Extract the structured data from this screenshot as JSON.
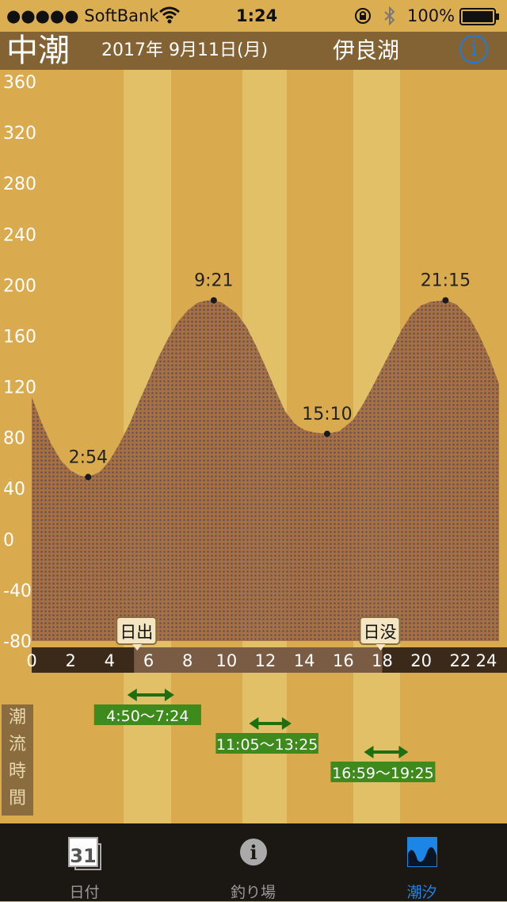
{
  "status_bar": {
    "carrier": "●●●●● SoftBank",
    "time": "1:24",
    "battery": "100%"
  },
  "header": {
    "tide_type": "中潮",
    "date": "2017年 9月11日(月)",
    "place": "伊良湖",
    "info_icon": "i"
  },
  "chart_data": {
    "type": "area",
    "x_ticks": [
      "0",
      "2",
      "4",
      "6",
      "8",
      "10",
      "12",
      "14",
      "16",
      "18",
      "20",
      "22",
      "24"
    ],
    "y_ticks": [
      "360",
      "320",
      "280",
      "240",
      "200",
      "160",
      "120",
      "80",
      "40",
      "0",
      "-40",
      "-80"
    ],
    "xlim": [
      0,
      24
    ],
    "ylim": [
      -80,
      360
    ],
    "series": [
      {
        "x": [
          0,
          0.5,
          1,
          1.5,
          2,
          2.5,
          2.9,
          3.5,
          4,
          4.5,
          5,
          5.5,
          6,
          6.5,
          7,
          7.5,
          8,
          8.5,
          9,
          9.35,
          9.8,
          10.5,
          11,
          11.5,
          12,
          12.5,
          13,
          13.5,
          14,
          14.5,
          15.17,
          15.8,
          16.5,
          17,
          17.5,
          18,
          18.5,
          19,
          19.5,
          20,
          20.5,
          21.25,
          21.8,
          22.5,
          23,
          23.5,
          24
        ],
        "y": [
          112,
          92,
          75,
          62,
          54,
          50,
          49,
          53,
          62,
          75,
          90,
          108,
          125,
          143,
          158,
          171,
          180,
          186,
          188,
          188,
          186,
          178,
          168,
          153,
          136,
          118,
          101,
          91,
          86,
          84,
          83,
          85,
          94,
          106,
          120,
          135,
          150,
          165,
          177,
          184,
          187,
          188,
          185,
          174,
          160,
          143,
          122
        ]
      }
    ],
    "extrema": [
      {
        "label": "2:54",
        "x": 2.9,
        "y": 49
      },
      {
        "label": "9:21",
        "x": 9.35,
        "y": 188
      },
      {
        "label": "15:10",
        "x": 15.17,
        "y": 83
      },
      {
        "label": "21:15",
        "x": 21.25,
        "y": 188
      }
    ],
    "sunrise": {
      "label": "日出",
      "x": 5.5
    },
    "sunset": {
      "label": "日没",
      "x": 18.0
    },
    "fishing_windows": [
      {
        "label": "4:50〜7:24",
        "start": 4.83,
        "end": 7.4
      },
      {
        "label": "11:05〜13:25",
        "start": 11.08,
        "end": 13.42
      },
      {
        "label": "16:59〜19:25",
        "start": 16.98,
        "end": 19.42
      }
    ],
    "tidal_current_label": "潮流時間",
    "colors": {
      "background": "#d9ab4e",
      "stripe": "#e2c068",
      "fill": "#8f5b3d",
      "window": "#3f8a1c"
    }
  },
  "tabs": [
    {
      "label": "日付",
      "icon": "calendar-icon",
      "icon_text": "31",
      "active": false
    },
    {
      "label": "釣り場",
      "icon": "info-circle-icon",
      "icon_text": "i",
      "active": false
    },
    {
      "label": "潮汐",
      "icon": "tide-wave-icon",
      "active": true
    }
  ]
}
